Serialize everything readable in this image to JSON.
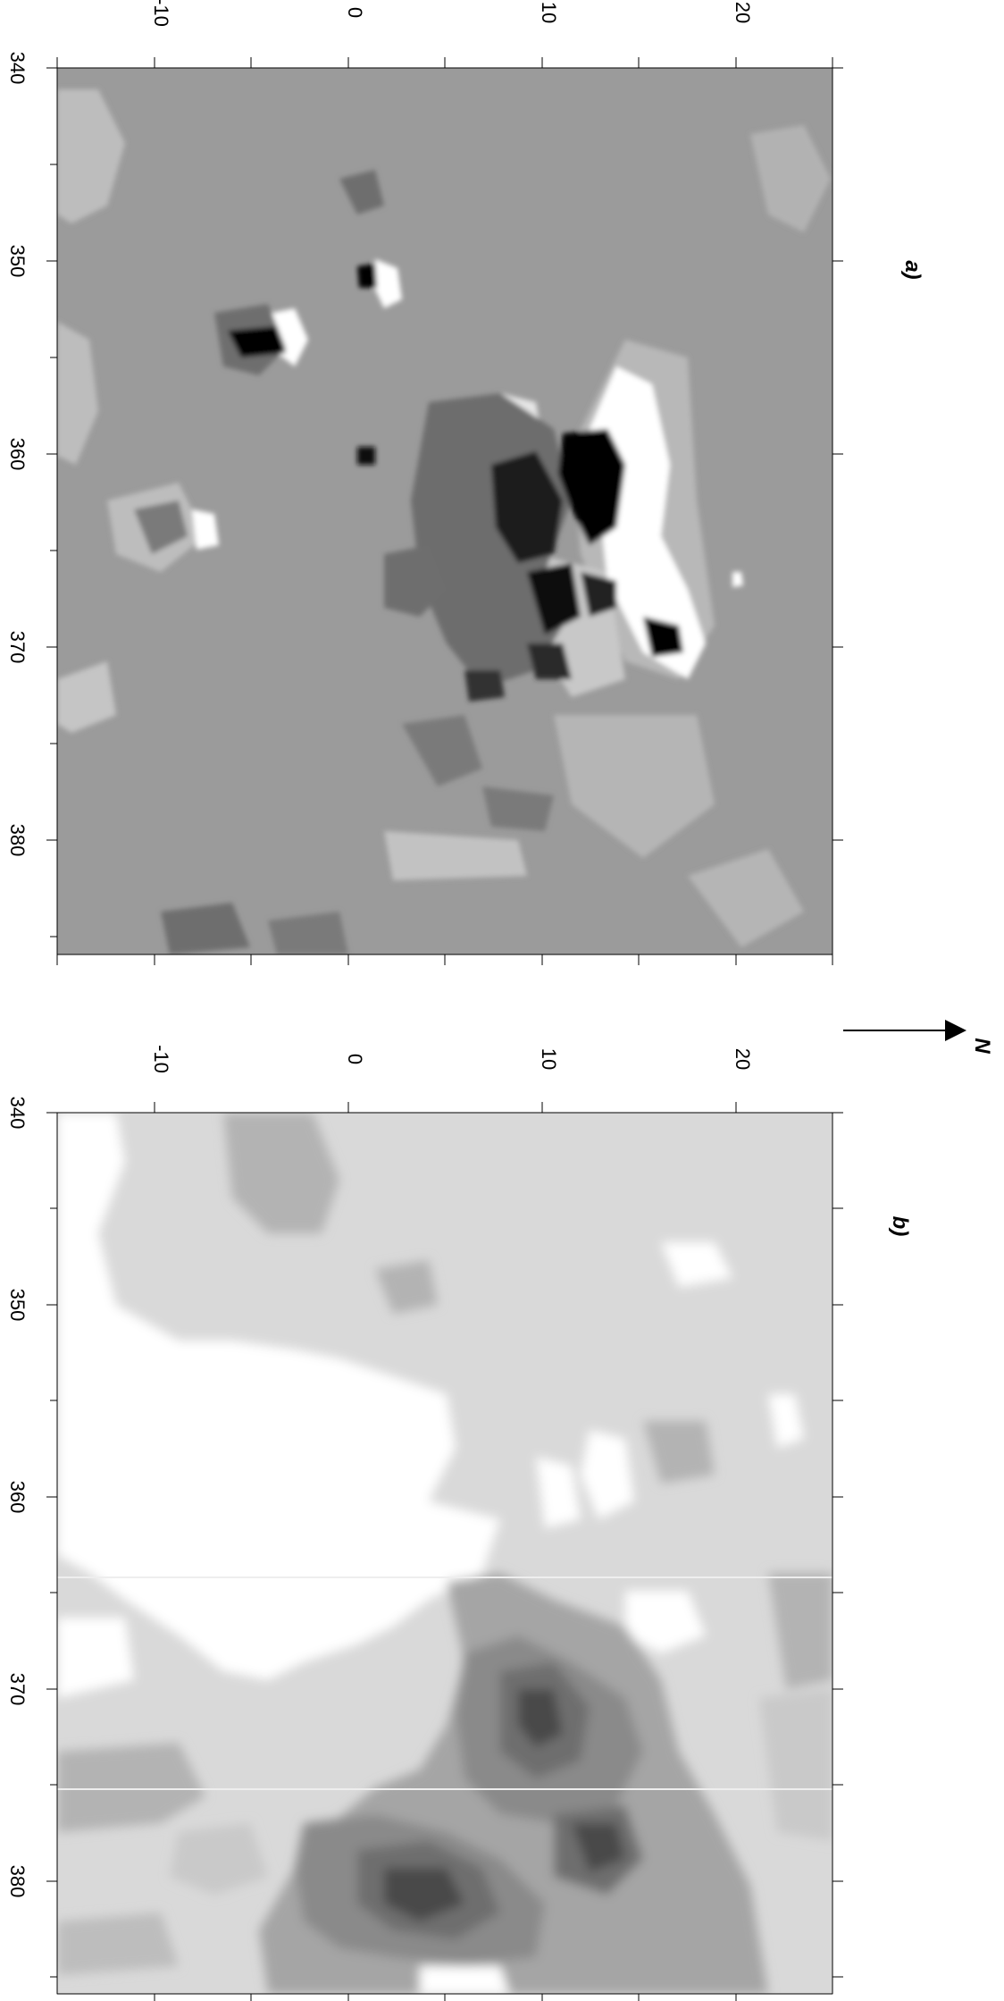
{
  "panels": [
    {
      "id": "a",
      "label": "a)",
      "x_ticks": [
        "340",
        "350",
        "360",
        "370",
        "380"
      ],
      "y_ticks": [
        "-10",
        "0",
        "10",
        "20"
      ]
    },
    {
      "id": "b",
      "label": "b)",
      "x_ticks": [
        "340",
        "350",
        "360",
        "370",
        "380"
      ],
      "y_ticks": [
        "-10",
        "0",
        "10",
        "20"
      ]
    }
  ],
  "north_arrow": {
    "label": "N"
  },
  "colors": {
    "background": "#ffffff",
    "panel_a_base": "#9b9b9b",
    "panel_b_base": "#d9d9d9",
    "axis": "#000000"
  }
}
